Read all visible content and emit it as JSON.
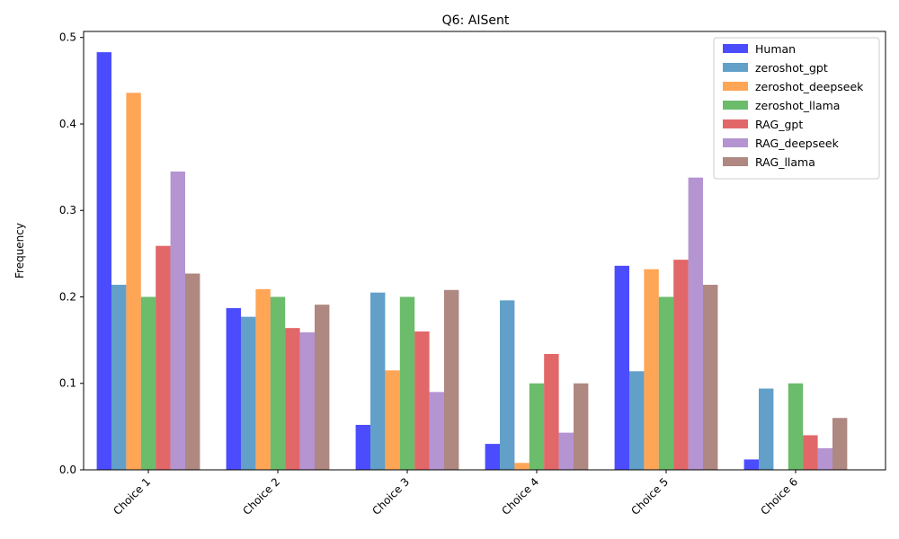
{
  "chart_data": {
    "type": "bar",
    "title": "Q6: AISent",
    "xlabel": "",
    "ylabel": "Frequency",
    "ylim": [
      0,
      0.507
    ],
    "yticks": [
      "0.0",
      "0.1",
      "0.2",
      "0.3",
      "0.4",
      "0.5"
    ],
    "grid": false,
    "legend_position": "top-right",
    "categories": [
      "Choice 1",
      "Choice 2",
      "Choice 3",
      "Choice 4",
      "Choice 5",
      "Choice 6"
    ],
    "series": [
      {
        "name": "Human",
        "color": "#0000ff",
        "values": [
          0.483,
          0.187,
          0.052,
          0.03,
          0.236,
          0.012
        ]
      },
      {
        "name": "zeroshot_gpt",
        "color": "#1f77b4",
        "values": [
          0.214,
          0.177,
          0.205,
          0.196,
          0.114,
          0.094
        ]
      },
      {
        "name": "zeroshot_deepseek",
        "color": "#ff7f0e",
        "values": [
          0.436,
          0.209,
          0.115,
          0.008,
          0.232,
          0.0
        ]
      },
      {
        "name": "zeroshot_llama",
        "color": "#2ca02c",
        "values": [
          0.2,
          0.2,
          0.2,
          0.1,
          0.2,
          0.1
        ]
      },
      {
        "name": "RAG_gpt",
        "color": "#d62728",
        "values": [
          0.259,
          0.164,
          0.16,
          0.134,
          0.243,
          0.04
        ]
      },
      {
        "name": "RAG_deepseek",
        "color": "#9467bd",
        "values": [
          0.345,
          0.159,
          0.09,
          0.043,
          0.338,
          0.025
        ]
      },
      {
        "name": "RAG_llama",
        "color": "#8c564b",
        "values": [
          0.227,
          0.191,
          0.208,
          0.1,
          0.214,
          0.06
        ]
      }
    ]
  }
}
